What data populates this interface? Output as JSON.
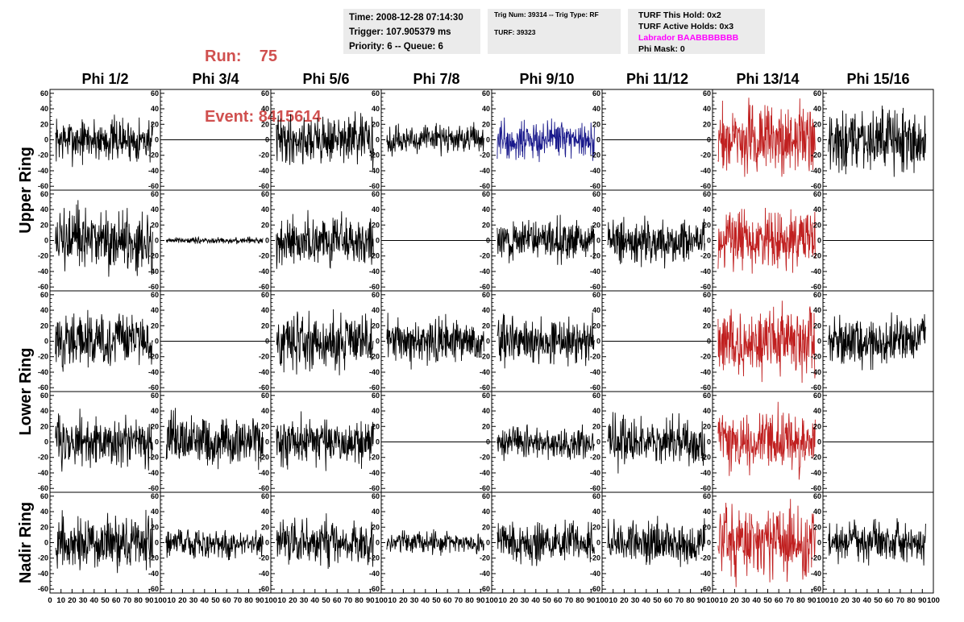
{
  "header": {
    "run_label": "Run:",
    "run_value": "75",
    "event_label": "Event:",
    "event_value": "8415614",
    "label_color": "#d0504f"
  },
  "info_time": {
    "time": "Time: 2008-12-28 07:14:30",
    "trigger": "Trigger: 107.905379 ms",
    "priority": "Priority: 6 -- Queue: 6"
  },
  "info_trig": {
    "trig": "Trig Num: 39314 -- Trig Type: RF",
    "turf": "TURF: 39323"
  },
  "info_turf": {
    "this_hold": "TURF This Hold: 0x2",
    "active_holds": "TURF Active Holds: 0x3",
    "labrador": "Labrador BAABBBBBBB",
    "labrador_color": "#ff00ff",
    "phi_mask": "Phi Mask: 0"
  },
  "chart_data": {
    "type": "line",
    "columns": [
      "Phi 1/2",
      "Phi 3/4",
      "Phi 5/6",
      "Phi 7/8",
      "Phi 9/10",
      "Phi 11/12",
      "Phi 13/14",
      "Phi 15/16"
    ],
    "row_groups": [
      {
        "label": "Upper Ring",
        "rows": [
          0,
          1
        ]
      },
      {
        "label": "Lower Ring",
        "rows": [
          2,
          3
        ]
      },
      {
        "label": "Nadir Ring",
        "rows": [
          4
        ]
      }
    ],
    "xlim": [
      0,
      100
    ],
    "ylim": [
      -65,
      65
    ],
    "y_ticks": [
      -60,
      -40,
      -20,
      0,
      20,
      40,
      60
    ],
    "x_tick_labels": [
      "0",
      "10",
      "20",
      "30",
      "40",
      "50",
      "60",
      "70",
      "80",
      "90",
      "100"
    ],
    "colors": {
      "normal": "#000000",
      "blue": "#1a1a8c",
      "red": "#c02020"
    },
    "rows": [
      {
        "amps": [
          22,
          0,
          24,
          14,
          20,
          0,
          35,
          30
        ],
        "colors": [
          "normal",
          "normal",
          "normal",
          "normal",
          "blue",
          "normal",
          "red",
          "normal"
        ]
      },
      {
        "amps": [
          32,
          3,
          24,
          0,
          20,
          22,
          30,
          0
        ],
        "colors": [
          "normal",
          "normal",
          "normal",
          "normal",
          "normal",
          "normal",
          "red",
          "normal"
        ]
      },
      {
        "amps": [
          28,
          0,
          28,
          22,
          24,
          0,
          35,
          25
        ],
        "colors": [
          "normal",
          "normal",
          "normal",
          "normal",
          "normal",
          "normal",
          "red",
          "normal"
        ]
      },
      {
        "amps": [
          25,
          26,
          25,
          0,
          15,
          25,
          30,
          0
        ],
        "colors": [
          "normal",
          "normal",
          "normal",
          "normal",
          "normal",
          "normal",
          "red",
          "normal"
        ]
      },
      {
        "amps": [
          25,
          16,
          22,
          11,
          20,
          20,
          35,
          20
        ],
        "colors": [
          "normal",
          "normal",
          "normal",
          "normal",
          "normal",
          "normal",
          "red",
          "normal"
        ]
      }
    ]
  }
}
